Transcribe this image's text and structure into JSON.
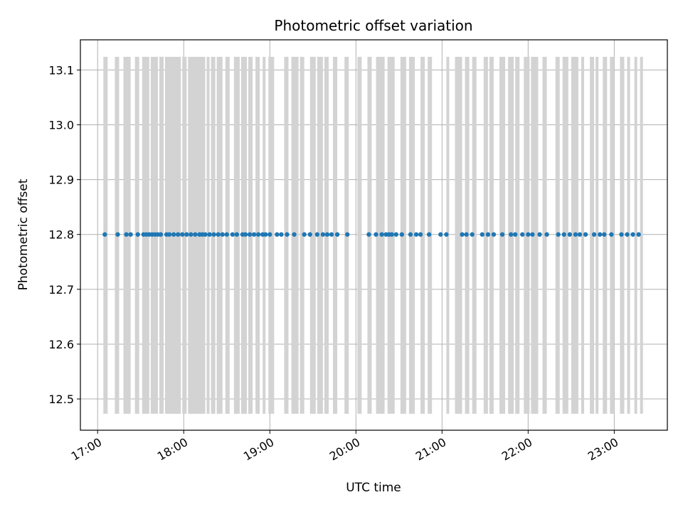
{
  "chart_data": {
    "type": "scatter",
    "title": "Photometric offset variation",
    "xlabel": "UTC time",
    "ylabel": "Photometric offset",
    "xlim": [
      "16:48",
      "23:37"
    ],
    "ylim": [
      12.443,
      13.155
    ],
    "x_ticks": [
      "17:00",
      "18:00",
      "19:00",
      "20:00",
      "21:00",
      "22:00",
      "23:00"
    ],
    "y_ticks": [
      "12.5",
      "12.6",
      "12.7",
      "12.8",
      "12.9",
      "13.0",
      "13.1"
    ],
    "grid": true,
    "point_color": "#1f77b4",
    "band_color": "#d3d3d3",
    "band_range": [
      12.473,
      13.124
    ],
    "points": {
      "y": 12.8,
      "times": [
        "17:05",
        "17:14",
        "17:20",
        "17:23",
        "17:28",
        "17:32",
        "17:34",
        "17:36",
        "17:38",
        "17:40",
        "17:42",
        "17:44",
        "17:48",
        "17:50",
        "17:53",
        "17:56",
        "17:59",
        "18:02",
        "18:05",
        "18:08",
        "18:11",
        "18:13",
        "18:15",
        "18:18",
        "18:21",
        "18:24",
        "18:27",
        "18:30",
        "18:34",
        "18:37",
        "18:41",
        "18:43",
        "18:46",
        "18:49",
        "18:52",
        "18:55",
        "18:57",
        "19:00",
        "19:05",
        "19:08",
        "19:12",
        "19:17",
        "19:24",
        "19:28",
        "19:33",
        "19:37",
        "19:40",
        "19:43",
        "19:47",
        "19:54",
        "20:09",
        "20:14",
        "20:18",
        "20:21",
        "20:23",
        "20:25",
        "20:28",
        "20:32",
        "20:38",
        "20:42",
        "20:45",
        "20:51",
        "20:59",
        "21:03",
        "21:14",
        "21:17",
        "21:21",
        "21:28",
        "21:32",
        "21:36",
        "21:42",
        "21:48",
        "21:51",
        "21:56",
        "22:00",
        "22:03",
        "22:08",
        "22:13",
        "22:21",
        "22:25",
        "22:29",
        "22:33",
        "22:36",
        "22:40",
        "22:46",
        "22:50",
        "22:53",
        "22:58",
        "23:05",
        "23:09",
        "23:13",
        "23:17"
      ]
    },
    "bands": [
      [
        "17:04",
        "17:07"
      ],
      [
        "17:12",
        "17:15"
      ],
      [
        "17:18",
        "17:23"
      ],
      [
        "17:26",
        "17:29"
      ],
      [
        "17:31",
        "17:36"
      ],
      [
        "17:37",
        "17:42"
      ],
      [
        "17:43",
        "17:46"
      ],
      [
        "17:47",
        "17:58"
      ],
      [
        "17:59",
        "18:02"
      ],
      [
        "18:03",
        "18:15"
      ],
      [
        "18:16",
        "18:18"
      ],
      [
        "18:19",
        "18:22"
      ],
      [
        "18:23",
        "18:27"
      ],
      [
        "18:29",
        "18:32"
      ],
      [
        "18:35",
        "18:39"
      ],
      [
        "18:40",
        "18:44"
      ],
      [
        "18:45",
        "18:48"
      ],
      [
        "18:50",
        "18:53"
      ],
      [
        "18:55",
        "18:57"
      ],
      [
        "18:59",
        "19:03"
      ],
      [
        "19:10",
        "19:13"
      ],
      [
        "19:15",
        "19:20"
      ],
      [
        "19:21",
        "19:24"
      ],
      [
        "19:28",
        "19:32"
      ],
      [
        "19:33",
        "19:37"
      ],
      [
        "19:38",
        "19:41"
      ],
      [
        "19:44",
        "19:47"
      ],
      [
        "19:52",
        "19:55"
      ],
      [
        "20:01",
        "20:04"
      ],
      [
        "20:08",
        "20:11"
      ],
      [
        "20:14",
        "20:20"
      ],
      [
        "20:22",
        "20:27"
      ],
      [
        "20:31",
        "20:35"
      ],
      [
        "20:37",
        "20:41"
      ],
      [
        "20:45",
        "20:48"
      ],
      [
        "20:50",
        "20:53"
      ],
      [
        "21:03",
        "21:05"
      ],
      [
        "21:09",
        "21:14"
      ],
      [
        "21:16",
        "21:19"
      ],
      [
        "21:21",
        "21:24"
      ],
      [
        "21:29",
        "21:32"
      ],
      [
        "21:33",
        "21:36"
      ],
      [
        "21:40",
        "21:44"
      ],
      [
        "21:46",
        "21:50"
      ],
      [
        "21:51",
        "21:54"
      ],
      [
        "21:57",
        "22:01"
      ],
      [
        "22:02",
        "22:07"
      ],
      [
        "22:10",
        "22:13"
      ],
      [
        "22:19",
        "22:22"
      ],
      [
        "22:24",
        "22:28"
      ],
      [
        "22:30",
        "22:35"
      ],
      [
        "22:37",
        "22:39"
      ],
      [
        "22:43",
        "22:46"
      ],
      [
        "22:47",
        "22:49"
      ],
      [
        "22:52",
        "22:55"
      ],
      [
        "22:57",
        "23:00"
      ],
      [
        "23:04",
        "23:07"
      ],
      [
        "23:09",
        "23:11"
      ],
      [
        "23:14",
        "23:16"
      ],
      [
        "23:18",
        "23:20"
      ]
    ]
  }
}
